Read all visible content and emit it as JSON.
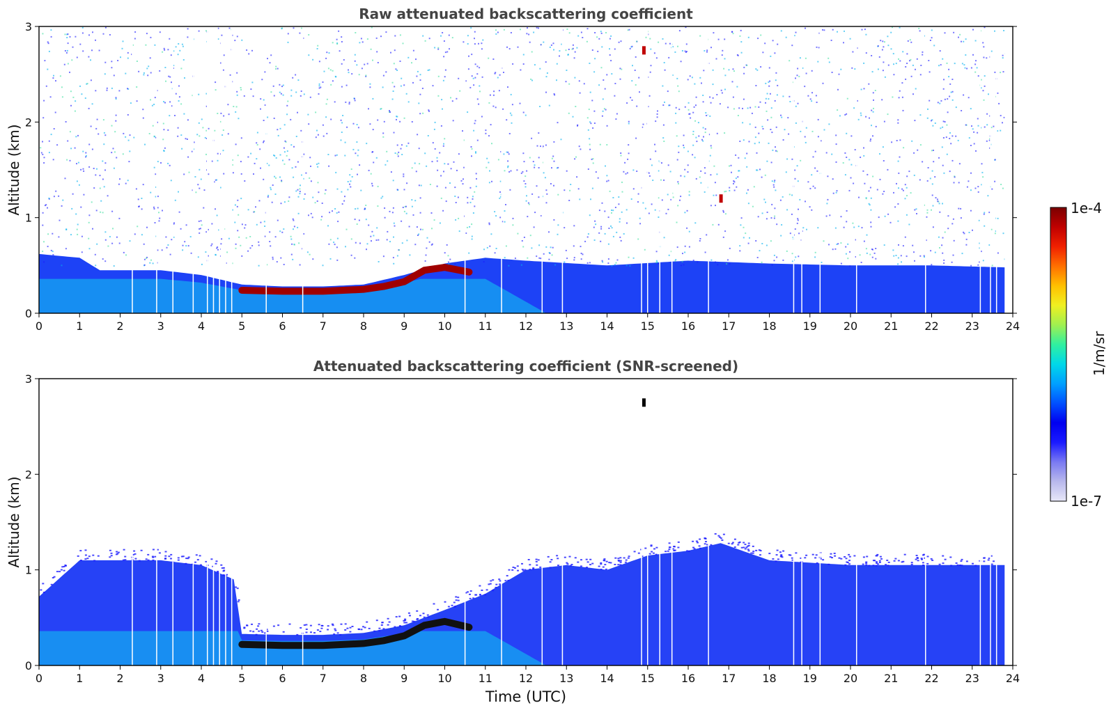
{
  "chart_data": [
    {
      "type": "heatmap",
      "title": "Raw attenuated backscattering coefficient",
      "xlabel": "",
      "ylabel": "Altitude (km)",
      "xlim": [
        0,
        24
      ],
      "ylim": [
        0,
        3
      ],
      "x_ticks": [
        "0",
        "1",
        "2",
        "3",
        "4",
        "5",
        "6",
        "7",
        "8",
        "9",
        "10",
        "11",
        "12",
        "13",
        "14",
        "15",
        "16",
        "17",
        "18",
        "19",
        "20",
        "21",
        "22",
        "23",
        "24"
      ],
      "y_ticks": [
        "0",
        "1",
        "2",
        "3"
      ],
      "data_end_time": 23.8,
      "boundary_layer_top_km": [
        {
          "x": 0,
          "y": 0.62
        },
        {
          "x": 1,
          "y": 0.58
        },
        {
          "x": 1.5,
          "y": 0.45
        },
        {
          "x": 3,
          "y": 0.45
        },
        {
          "x": 4,
          "y": 0.4
        },
        {
          "x": 5,
          "y": 0.3
        },
        {
          "x": 6,
          "y": 0.28
        },
        {
          "x": 7,
          "y": 0.28
        },
        {
          "x": 8,
          "y": 0.3
        },
        {
          "x": 9,
          "y": 0.4
        },
        {
          "x": 10,
          "y": 0.52
        },
        {
          "x": 11,
          "y": 0.58
        },
        {
          "x": 12,
          "y": 0.55
        },
        {
          "x": 14,
          "y": 0.5
        },
        {
          "x": 16,
          "y": 0.55
        },
        {
          "x": 18,
          "y": 0.52
        },
        {
          "x": 20,
          "y": 0.5
        },
        {
          "x": 22,
          "y": 0.5
        },
        {
          "x": 23.8,
          "y": 0.48
        }
      ],
      "strong_layer": [
        {
          "x": 5.0,
          "y": 0.24
        },
        {
          "x": 6.0,
          "y": 0.23
        },
        {
          "x": 7.0,
          "y": 0.23
        },
        {
          "x": 8.0,
          "y": 0.25
        },
        {
          "x": 8.5,
          "y": 0.28
        },
        {
          "x": 9.0,
          "y": 0.33
        },
        {
          "x": 9.5,
          "y": 0.45
        },
        {
          "x": 10.0,
          "y": 0.48
        },
        {
          "x": 10.6,
          "y": 0.43
        }
      ],
      "cloud_features": [
        {
          "x": 14.9,
          "y": 2.75,
          "desc": "cloud"
        },
        {
          "x": 16.8,
          "y": 1.2,
          "desc": "cloud"
        }
      ]
    },
    {
      "type": "heatmap",
      "title": "Attenuated backscattering coefficient (SNR-screened)",
      "xlabel": "Time (UTC)",
      "ylabel": "Altitude (km)",
      "xlim": [
        0,
        24
      ],
      "ylim": [
        0,
        3
      ],
      "x_ticks": [
        "0",
        "1",
        "2",
        "3",
        "4",
        "5",
        "6",
        "7",
        "8",
        "9",
        "10",
        "11",
        "12",
        "13",
        "14",
        "15",
        "16",
        "17",
        "18",
        "19",
        "20",
        "21",
        "22",
        "23",
        "24"
      ],
      "y_ticks": [
        "0",
        "1",
        "2",
        "3"
      ],
      "data_end_time": 23.8,
      "screened_top_km": [
        {
          "x": 0,
          "y": 0.72
        },
        {
          "x": 1,
          "y": 1.1
        },
        {
          "x": 1.5,
          "y": 1.1
        },
        {
          "x": 3,
          "y": 1.1
        },
        {
          "x": 4,
          "y": 1.05
        },
        {
          "x": 4.8,
          "y": 0.9
        },
        {
          "x": 5.0,
          "y": 0.33
        },
        {
          "x": 6,
          "y": 0.32
        },
        {
          "x": 7,
          "y": 0.32
        },
        {
          "x": 8,
          "y": 0.34
        },
        {
          "x": 9,
          "y": 0.42
        },
        {
          "x": 10,
          "y": 0.58
        },
        {
          "x": 11,
          "y": 0.75
        },
        {
          "x": 11.6,
          "y": 0.9
        },
        {
          "x": 12,
          "y": 1.0
        },
        {
          "x": 13,
          "y": 1.05
        },
        {
          "x": 14,
          "y": 1.0
        },
        {
          "x": 15,
          "y": 1.15
        },
        {
          "x": 16,
          "y": 1.2
        },
        {
          "x": 16.8,
          "y": 1.28
        },
        {
          "x": 18,
          "y": 1.1
        },
        {
          "x": 20,
          "y": 1.05
        },
        {
          "x": 22,
          "y": 1.05
        },
        {
          "x": 23.8,
          "y": 1.05
        }
      ],
      "strong_layer": [
        {
          "x": 5.0,
          "y": 0.22
        },
        {
          "x": 6.0,
          "y": 0.21
        },
        {
          "x": 7.0,
          "y": 0.21
        },
        {
          "x": 8.0,
          "y": 0.23
        },
        {
          "x": 8.5,
          "y": 0.26
        },
        {
          "x": 9.0,
          "y": 0.31
        },
        {
          "x": 9.5,
          "y": 0.42
        },
        {
          "x": 10.0,
          "y": 0.46
        },
        {
          "x": 10.6,
          "y": 0.4
        }
      ],
      "cloud_features": [
        {
          "x": 14.9,
          "y": 2.75,
          "desc": "cloud"
        }
      ]
    }
  ],
  "colorbar": {
    "label": "1/m/sr",
    "max_label": "1e-4",
    "min_label": "1e-7",
    "scale": "log",
    "range": [
      1e-07,
      0.0001
    ],
    "colors": [
      "#e8e8f8",
      "#b8b8ec",
      "#7a7af2",
      "#1a1aff",
      "#0000f0",
      "#0050ff",
      "#00a0ff",
      "#00d8e8",
      "#30f0a0",
      "#a0f050",
      "#f0f020",
      "#ffc000",
      "#ff7000",
      "#f02000",
      "#c00000",
      "#7a0000"
    ]
  }
}
